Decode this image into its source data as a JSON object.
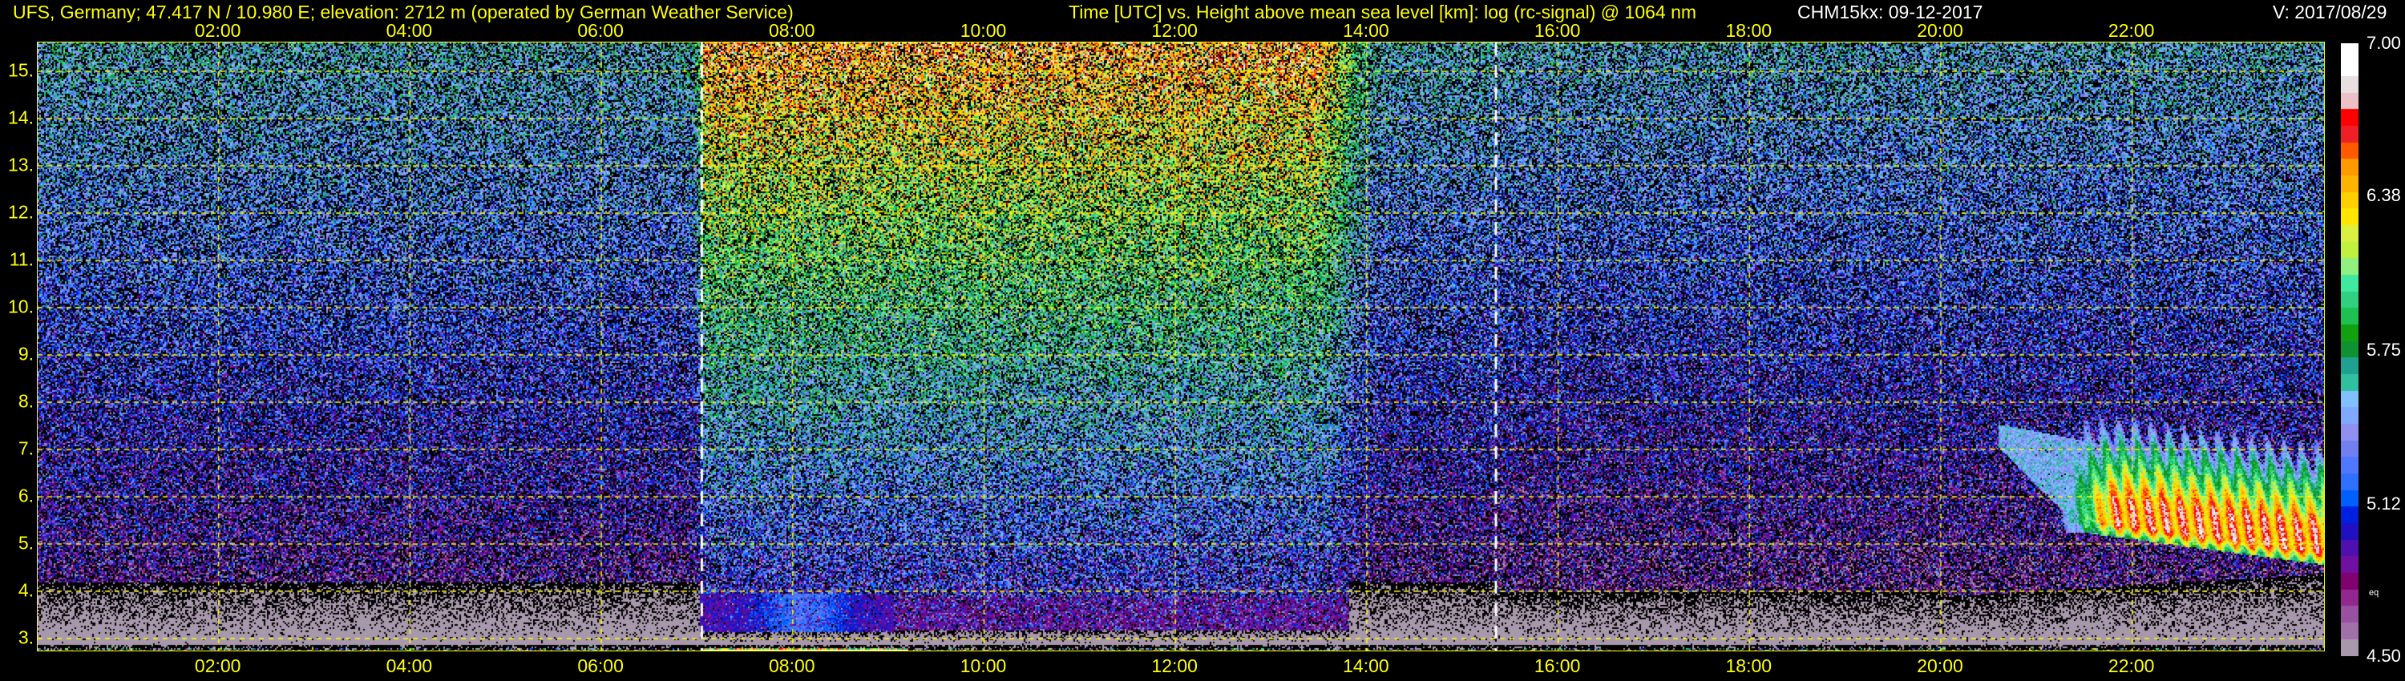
{
  "header": {
    "station": "UFS, Germany; 47.417 N / 10.980 E; elevation: 2712 m  (operated by German Weather Service)",
    "axes_title": "Time [UTC] vs. Height above mean sea level [km]: log (rc-signal) @ 1064 nm",
    "instrument": "CHM15kx: 09-12-2017",
    "version": "V: 2017/08/29"
  },
  "chart_data": {
    "type": "heatmap",
    "title": "Time [UTC] vs. Height above mean sea level [km]: log (rc-signal) @ 1064 nm",
    "xlabel": "Time [UTC]",
    "ylabel": "Height above mean sea level [km]",
    "x_ticks": [
      "02:00",
      "04:00",
      "06:00",
      "08:00",
      "10:00",
      "12:00",
      "14:00",
      "16:00",
      "18:00",
      "20:00",
      "22:00"
    ],
    "x_tick_hours": [
      2,
      4,
      6,
      8,
      10,
      12,
      14,
      16,
      18,
      20,
      22
    ],
    "y_ticks": [
      "15.",
      "14.",
      "13.",
      "12.",
      "11.",
      "10.",
      "9.",
      "8.",
      "7.",
      "6.",
      "5.",
      "4.",
      "3."
    ],
    "y_tick_values": [
      15,
      14,
      13,
      12,
      11,
      10,
      9,
      8,
      7,
      6,
      5,
      4,
      3
    ],
    "xlim_hours": [
      0.1,
      24.0
    ],
    "ylim_km": [
      2.75,
      15.7
    ],
    "grid": true,
    "marker_lines_hours": [
      7.05,
      15.35
    ],
    "colorbar": {
      "range": [
        4.5,
        7.0
      ],
      "labels": [
        "7.00",
        "6.38",
        "5.75",
        "5.12",
        "4.50"
      ],
      "label_values": [
        7.0,
        6.38,
        5.75,
        5.12,
        4.5
      ],
      "note": "eq",
      "colors_high_to_low": [
        "#ffffff",
        "#ffffff",
        "#e8dfe0",
        "#ecc0c4",
        "#ff0000",
        "#ee2026",
        "#ff5a00",
        "#ff9a00",
        "#ffb400",
        "#ffd000",
        "#ffe600",
        "#d9f040",
        "#c0f040",
        "#90f080",
        "#40e8a0",
        "#30d080",
        "#20c050",
        "#10a010",
        "#109030",
        "#20a090",
        "#30c0a0",
        "#80c0ff",
        "#80a8ff",
        "#9090f0",
        "#7080f0",
        "#5078ff",
        "#3070ff",
        "#0060ff",
        "#0020e0",
        "#2010c0",
        "#5010b0",
        "#7010a0",
        "#800070",
        "#902890",
        "#9850a0",
        "#a070a8",
        "#a898ac"
      ]
    },
    "features": {
      "cloud_layer": {
        "start_hour": 21.0,
        "end_hour": 24.0,
        "base_km": [
          5.2,
          4.55
        ],
        "top_km": 7.3
      },
      "aerosol_layer": {
        "start_hour": 7.3,
        "end_hour": 9.0,
        "height_km": [
          3.2,
          3.95
        ]
      }
    }
  }
}
